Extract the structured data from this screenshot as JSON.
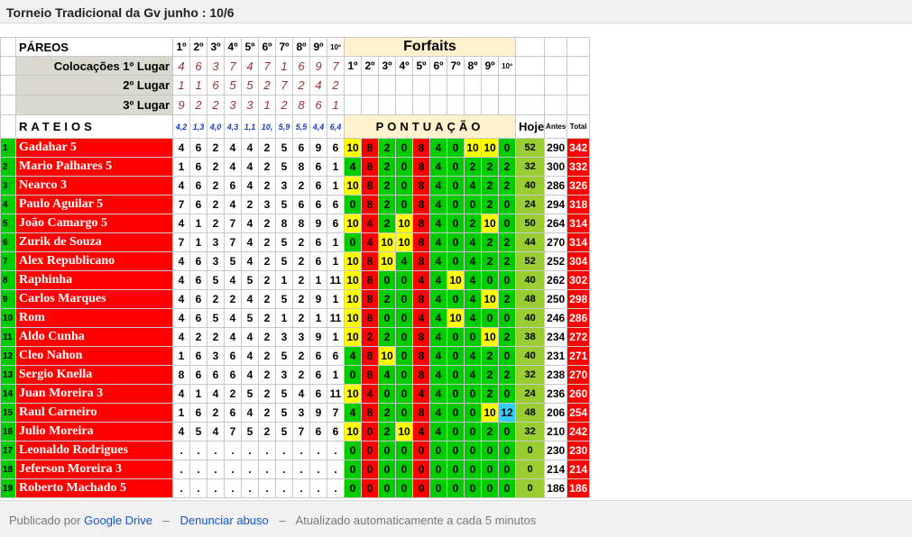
{
  "title": "Torneio Tradicional da Gv junho : 10/6",
  "labels": {
    "pareos": "PÁREOS",
    "colocacoes_1": "Colocações 1º Lugar",
    "lugar_2": "2º Lugar",
    "lugar_3": "3º Lugar",
    "rateios": "RATEIOS",
    "forfaits": "Forfaits",
    "pontuacao": "PONTUAÇÃO",
    "hoje": "Hoje",
    "antes": "Antes",
    "total": "Total"
  },
  "pareo_headers": [
    "1º",
    "2º",
    "3º",
    "4º",
    "5º",
    "6º",
    "7º",
    "8º",
    "9º",
    "10º"
  ],
  "forfait_headers": [
    "1º",
    "2º",
    "3º",
    "4º",
    "5º",
    "6º",
    "7º",
    "8º",
    "9º",
    "10º"
  ],
  "colocacoes": {
    "primeiro": [
      "4",
      "6",
      "3",
      "7",
      "4",
      "7",
      "1",
      "6",
      "9",
      "7"
    ],
    "segundo": [
      "1",
      "1",
      "6",
      "5",
      "5",
      "2",
      "7",
      "2",
      "4",
      "2"
    ],
    "terceiro": [
      "9",
      "2",
      "2",
      "3",
      "3",
      "1",
      "2",
      "8",
      "6",
      "1"
    ]
  },
  "rateios": [
    "4,2",
    "1,3",
    "4,0",
    "4,3",
    "1,1",
    "10,",
    "5,9",
    "5,5",
    "4,4",
    "6,4"
  ],
  "colors": {
    "red": "#ff0000",
    "green": "#00cc00",
    "yellow": "#ffff00",
    "cyan": "#33ccff",
    "olive": "#9acd32",
    "beige": "#fff2cc"
  },
  "rows": [
    {
      "n": "1",
      "name": "Gadahar 5",
      "picks": [
        "4",
        "6",
        "2",
        "4",
        "4",
        "2",
        "5",
        "6",
        "9",
        "6"
      ],
      "pts": [
        "10",
        "8",
        "2",
        "0",
        "8",
        "4",
        "0",
        "10",
        "10",
        "0"
      ],
      "hoje": "52",
      "antes": "290",
      "total": "342"
    },
    {
      "n": "2",
      "name": "Mario Palhares 5",
      "picks": [
        "1",
        "6",
        "2",
        "4",
        "4",
        "2",
        "5",
        "8",
        "6",
        "1"
      ],
      "pts": [
        "4",
        "8",
        "2",
        "0",
        "8",
        "4",
        "0",
        "2",
        "2",
        "2"
      ],
      "hoje": "32",
      "antes": "300",
      "total": "332"
    },
    {
      "n": "3",
      "name": "Nearco 3",
      "picks": [
        "4",
        "6",
        "2",
        "6",
        "4",
        "2",
        "3",
        "2",
        "6",
        "1"
      ],
      "pts": [
        "10",
        "8",
        "2",
        "0",
        "8",
        "4",
        "0",
        "4",
        "2",
        "2"
      ],
      "hoje": "40",
      "antes": "286",
      "total": "326"
    },
    {
      "n": "4",
      "name": "Paulo Aguilar 5",
      "picks": [
        "7",
        "6",
        "2",
        "4",
        "2",
        "3",
        "5",
        "6",
        "6",
        "6"
      ],
      "pts": [
        "0",
        "8",
        "2",
        "0",
        "8",
        "4",
        "0",
        "0",
        "2",
        "0"
      ],
      "hoje": "24",
      "antes": "294",
      "total": "318"
    },
    {
      "n": "5",
      "name": "João Camargo 5",
      "picks": [
        "4",
        "1",
        "2",
        "7",
        "4",
        "2",
        "8",
        "8",
        "9",
        "6"
      ],
      "pts": [
        "10",
        "4",
        "2",
        "10",
        "8",
        "4",
        "0",
        "2",
        "10",
        "0"
      ],
      "hoje": "50",
      "antes": "264",
      "total": "314"
    },
    {
      "n": "6",
      "name": "Zurik de Souza",
      "picks": [
        "7",
        "1",
        "3",
        "7",
        "4",
        "2",
        "5",
        "2",
        "6",
        "1"
      ],
      "pts": [
        "0",
        "4",
        "10",
        "10",
        "8",
        "4",
        "0",
        "4",
        "2",
        "2"
      ],
      "hoje": "44",
      "antes": "270",
      "total": "314"
    },
    {
      "n": "7",
      "name": "Alex Republicano",
      "picks": [
        "4",
        "6",
        "3",
        "5",
        "4",
        "2",
        "5",
        "2",
        "6",
        "1"
      ],
      "pts": [
        "10",
        "8",
        "10",
        "4",
        "8",
        "4",
        "0",
        "4",
        "2",
        "2"
      ],
      "hoje": "52",
      "antes": "252",
      "total": "304"
    },
    {
      "n": "8",
      "name": "Raphinha",
      "picks": [
        "4",
        "6",
        "5",
        "4",
        "5",
        "2",
        "1",
        "2",
        "1",
        "11"
      ],
      "pts": [
        "10",
        "8",
        "0",
        "0",
        "4",
        "4",
        "10",
        "4",
        "0",
        "0"
      ],
      "hoje": "40",
      "antes": "262",
      "total": "302"
    },
    {
      "n": "9",
      "name": "Carlos Marques",
      "picks": [
        "4",
        "6",
        "2",
        "2",
        "4",
        "2",
        "5",
        "2",
        "9",
        "1"
      ],
      "pts": [
        "10",
        "8",
        "2",
        "0",
        "8",
        "4",
        "0",
        "4",
        "10",
        "2"
      ],
      "hoje": "48",
      "antes": "250",
      "total": "298"
    },
    {
      "n": "10",
      "name": "Rom",
      "picks": [
        "4",
        "6",
        "5",
        "4",
        "5",
        "2",
        "1",
        "2",
        "1",
        "11"
      ],
      "pts": [
        "10",
        "8",
        "0",
        "0",
        "4",
        "4",
        "10",
        "4",
        "0",
        "0"
      ],
      "hoje": "40",
      "antes": "246",
      "total": "286"
    },
    {
      "n": "11",
      "name": "Aldo Cunha",
      "picks": [
        "4",
        "2",
        "2",
        "4",
        "4",
        "2",
        "3",
        "3",
        "9",
        "1"
      ],
      "pts": [
        "10",
        "2",
        "2",
        "0",
        "8",
        "4",
        "0",
        "0",
        "10",
        "2"
      ],
      "hoje": "38",
      "antes": "234",
      "total": "272"
    },
    {
      "n": "12",
      "name": "Cleo Nahon",
      "picks": [
        "1",
        "6",
        "3",
        "6",
        "4",
        "2",
        "5",
        "2",
        "6",
        "6"
      ],
      "pts": [
        "4",
        "8",
        "10",
        "0",
        "8",
        "4",
        "0",
        "4",
        "2",
        "0"
      ],
      "hoje": "40",
      "antes": "231",
      "total": "271"
    },
    {
      "n": "13",
      "name": "Sergio Knella",
      "picks": [
        "8",
        "6",
        "6",
        "6",
        "4",
        "2",
        "3",
        "2",
        "6",
        "1"
      ],
      "pts": [
        "0",
        "8",
        "4",
        "0",
        "8",
        "4",
        "0",
        "4",
        "2",
        "2"
      ],
      "hoje": "32",
      "antes": "238",
      "total": "270"
    },
    {
      "n": "14",
      "name": "Juan Moreira 3",
      "picks": [
        "4",
        "1",
        "4",
        "2",
        "5",
        "2",
        "5",
        "4",
        "6",
        "11"
      ],
      "pts": [
        "10",
        "4",
        "0",
        "0",
        "4",
        "4",
        "0",
        "0",
        "2",
        "0"
      ],
      "hoje": "24",
      "antes": "236",
      "total": "260"
    },
    {
      "n": "15",
      "name": "Raul Carneiro",
      "picks": [
        "1",
        "6",
        "2",
        "6",
        "4",
        "2",
        "5",
        "3",
        "9",
        "7"
      ],
      "pts": [
        "4",
        "8",
        "2",
        "0",
        "8",
        "4",
        "0",
        "0",
        "10",
        "12"
      ],
      "hoje": "48",
      "antes": "206",
      "total": "254"
    },
    {
      "n": "16",
      "name": "Julio Moreira",
      "picks": [
        "4",
        "5",
        "4",
        "7",
        "5",
        "2",
        "5",
        "7",
        "6",
        "6"
      ],
      "pts": [
        "10",
        "0",
        "2",
        "10",
        "4",
        "4",
        "0",
        "0",
        "2",
        "0"
      ],
      "hoje": "32",
      "antes": "210",
      "total": "242"
    },
    {
      "n": "17",
      "name": "Leonaldo Rodrigues",
      "picks": [
        ".",
        ".",
        ".",
        ".",
        ".",
        ".",
        ".",
        ".",
        ".",
        "."
      ],
      "pts": [
        "0",
        "0",
        "0",
        "0",
        "0",
        "0",
        "0",
        "0",
        "0",
        "0"
      ],
      "hoje": "0",
      "antes": "230",
      "total": "230"
    },
    {
      "n": "18",
      "name": "Jeferson Moreira 3",
      "picks": [
        ".",
        ".",
        ".",
        ".",
        ".",
        ".",
        ".",
        ".",
        ".",
        "."
      ],
      "pts": [
        "0",
        "0",
        "0",
        "0",
        "0",
        "0",
        "0",
        "0",
        "0",
        "0"
      ],
      "hoje": "0",
      "antes": "214",
      "total": "214"
    },
    {
      "n": "19",
      "name": "Roberto Machado 5",
      "picks": [
        ".",
        ".",
        ".",
        ".",
        ".",
        ".",
        ".",
        ".",
        ".",
        "."
      ],
      "pts": [
        "0",
        "0",
        "0",
        "0",
        "0",
        "0",
        "0",
        "0",
        "0",
        "0"
      ],
      "hoje": "0",
      "antes": "186",
      "total": "186"
    }
  ],
  "footer": {
    "published_by": "Publicado por",
    "google_drive": "Google Drive",
    "sep1": "–",
    "report_abuse": "Denunciar abuso",
    "sep2": "–",
    "auto_update": "Atualizado automaticamente a cada 5 minutos"
  }
}
